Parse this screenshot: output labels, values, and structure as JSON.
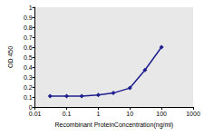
{
  "chart_data": {
    "type": "line",
    "x": [
      0.03,
      0.1,
      0.3,
      1,
      3,
      10,
      30,
      100
    ],
    "values": [
      0.11,
      0.11,
      0.11,
      0.12,
      0.14,
      0.19,
      0.37,
      0.6
    ],
    "color": "#1f1f8f",
    "marker": "diamond",
    "xlabel": "Recombinant ProteinConcentration(ng/ml)",
    "ylabel": "OD 450",
    "log": "x",
    "xlim": [
      0.01,
      1000
    ],
    "xticks": [
      0.01,
      0.1,
      1,
      10,
      100,
      1000
    ],
    "ylim": [
      0,
      1
    ],
    "yticks": [
      0,
      0.1,
      0.2,
      0.3,
      0.4,
      0.5,
      0.6,
      0.7,
      0.8,
      0.9,
      1
    ],
    "grid": false
  }
}
